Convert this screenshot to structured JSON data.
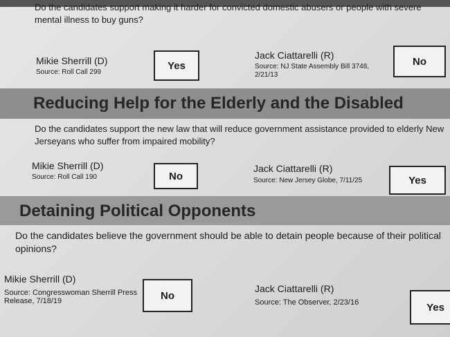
{
  "sections": [
    {
      "question": "Do the candidates support making it harder for convicted domestic abusers or people with severe mental illness to buy guns?",
      "candidates": [
        {
          "name": "Mikie Sherrill (D)",
          "source": "Source: Roll Call 299",
          "answer": "Yes"
        },
        {
          "name": "Jack Ciattarelli (R)",
          "source": "Source: NJ State Assembly Bill 3748, 2/21/13",
          "answer": "No"
        }
      ]
    },
    {
      "title": "Reducing Help for the Elderly and the Disabled",
      "question": "Do the candidates support the new law that will reduce government assistance provided to elderly New Jerseyans who suffer from impaired mobility?",
      "candidates": [
        {
          "name": "Mikie Sherrill (D)",
          "source": "Source: Roll Call 190",
          "answer": "No"
        },
        {
          "name": "Jack Ciattarelli (R)",
          "source": "Source: New Jersey Globe, 7/11/25",
          "answer": "Yes"
        }
      ]
    },
    {
      "title": "Detaining Political Opponents",
      "question": "Do the candidates believe the government should be able to detain people because of their political opinions?",
      "candidates": [
        {
          "name": "Mikie Sherrill (D)",
          "source": "Source: Congresswoman Sherrill Press Release, 7/18/19",
          "answer": "No"
        },
        {
          "name": "Jack Ciattarelli (R)",
          "source": "Source: The Observer, 2/23/16",
          "answer": "Yes"
        }
      ]
    }
  ]
}
